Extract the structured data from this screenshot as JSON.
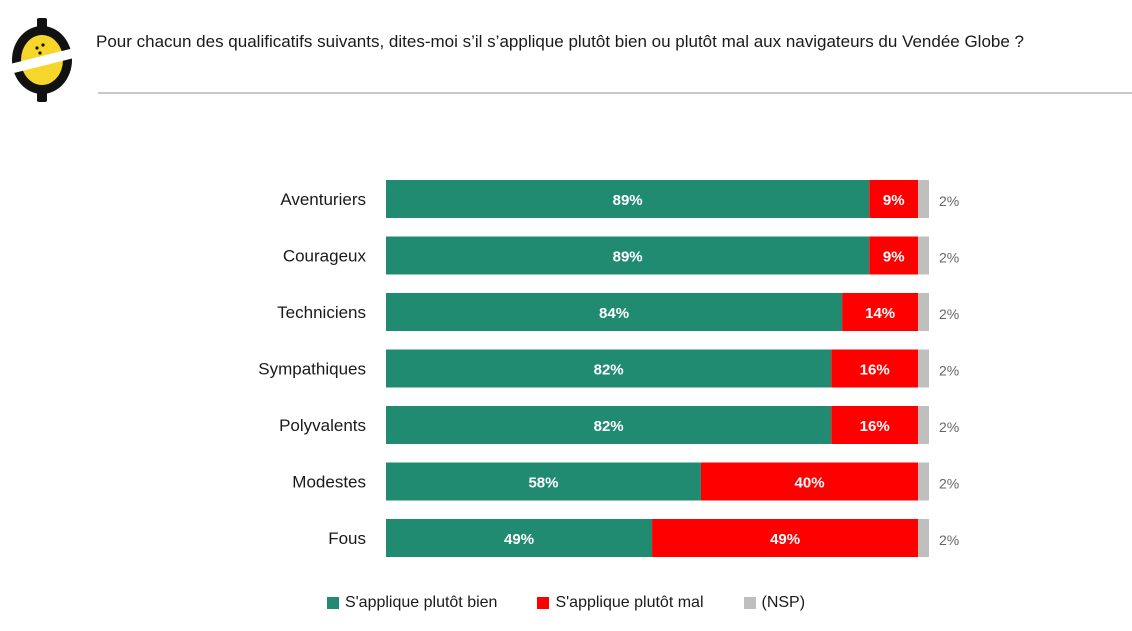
{
  "header": {
    "question": "Pour chacun des qualificatifs suivants, dites-moi s’il s’applique plutôt bien ou plutôt mal aux navigateurs du Vendée Globe ?"
  },
  "colors": {
    "bien": "#218b71",
    "mal": "#ff0000",
    "nsp": "#bfbfbf",
    "logo_yellow": "#f6d62a",
    "logo_black": "#111111"
  },
  "logo": {
    "icon": "pollster-logo-icon"
  },
  "chart_data": {
    "type": "bar",
    "orientation": "horizontal",
    "stacked": true,
    "unit": "%",
    "xlim": [
      0,
      100
    ],
    "grid": false,
    "legend_position": "bottom",
    "categories": [
      "Aventuriers",
      "Courageux",
      "Techniciens",
      "Sympathiques",
      "Polyvalents",
      "Modestes",
      "Fous"
    ],
    "series": [
      {
        "key": "bien",
        "name": "S'applique plutôt bien",
        "values": [
          89,
          89,
          84,
          82,
          82,
          58,
          49
        ]
      },
      {
        "key": "mal",
        "name": "S'applique plutôt mal",
        "values": [
          9,
          9,
          14,
          16,
          16,
          40,
          49
        ]
      },
      {
        "key": "nsp",
        "name": "(NSP)",
        "values": [
          2,
          2,
          2,
          2,
          2,
          2,
          2
        ]
      }
    ],
    "data_labels": {
      "bien": [
        "89%",
        "89%",
        "84%",
        "82%",
        "82%",
        "58%",
        "49%"
      ],
      "mal": [
        "9%",
        "9%",
        "14%",
        "16%",
        "16%",
        "40%",
        "49%"
      ],
      "nsp": [
        "2%",
        "2%",
        "2%",
        "2%",
        "2%",
        "2%",
        "2%"
      ]
    }
  }
}
